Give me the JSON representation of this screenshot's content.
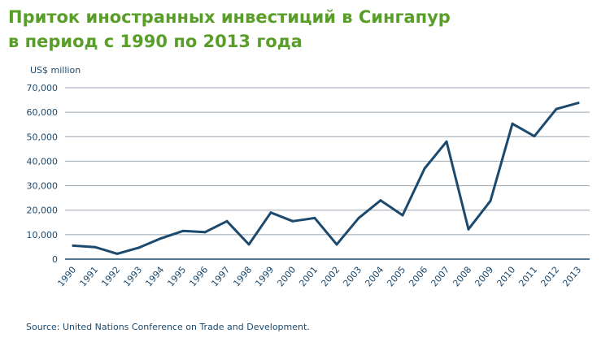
{
  "title": {
    "line1": "Приток иностранных инвестиций в Сингапур",
    "line2": "в период с 1990 по 2013 года"
  },
  "source": "Source: United Nations Conference on Trade and Development.",
  "colors": {
    "title": "#5a9e2a",
    "line": "#1c4a6e",
    "grid": "#9aa6b0",
    "text": "#1c4a6e"
  },
  "chart_data": {
    "type": "line",
    "ylabel": "US$ million",
    "xlabel": "",
    "ylim": [
      0,
      70000
    ],
    "yticks": [
      0,
      10000,
      20000,
      30000,
      40000,
      50000,
      60000,
      70000
    ],
    "ytick_labels": [
      "0",
      "10,000",
      "20,000",
      "30,000",
      "40,000",
      "50,000",
      "60,000",
      "70,000"
    ],
    "grid": true,
    "categories": [
      "1990",
      "1991",
      "1992",
      "1993",
      "1994",
      "1995",
      "1996",
      "1997",
      "1998",
      "1999",
      "2000",
      "2001",
      "2002",
      "2003",
      "2004",
      "2005",
      "2006",
      "2007",
      "2008",
      "2009",
      "2010",
      "2011",
      "2012",
      "2013"
    ],
    "values": [
      5500,
      4900,
      2200,
      4700,
      8500,
      11500,
      11000,
      15500,
      6000,
      19000,
      15500,
      16800,
      6000,
      16800,
      24000,
      17900,
      37000,
      48000,
      12200,
      23800,
      55300,
      50200,
      61300,
      63800
    ]
  }
}
